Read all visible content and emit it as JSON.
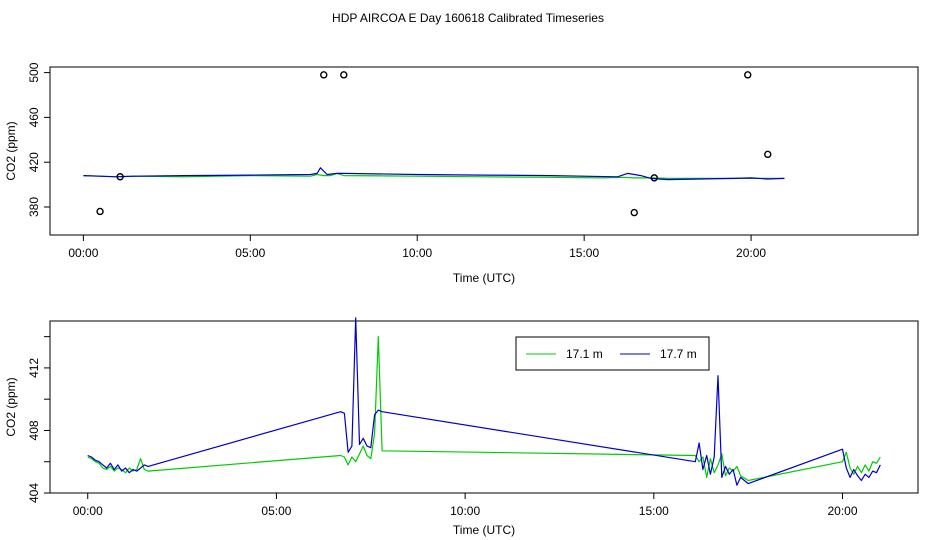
{
  "page_title": "HDP AIRCOA E  Day 160618  Calibrated Timeseries",
  "colors": {
    "series_green": "#00cc00",
    "series_blue": "#0000cc",
    "outlier_marker": "#000000"
  },
  "chart_data": [
    {
      "type": "line",
      "xlabel": "Time (UTC)",
      "ylabel": "CO2 (ppm)",
      "xlim": [
        -1,
        25
      ],
      "ylim": [
        355,
        505
      ],
      "x_ticks": [
        0,
        5,
        10,
        15,
        20
      ],
      "x_tick_labels": [
        "00:00",
        "05:00",
        "10:00",
        "15:00",
        "20:00"
      ],
      "y_ticks": [
        380,
        420,
        460,
        500
      ],
      "y_tick_labels": [
        "380",
        "420",
        "460",
        "500"
      ],
      "grid": false,
      "series": [
        {
          "color": "#00cc00",
          "x": [
            0,
            0.5,
            1.0,
            1.5,
            3.0,
            5.0,
            6.8,
            7.0,
            7.2,
            7.4,
            7.6,
            7.8,
            10.0,
            12.0,
            14.0,
            15.5,
            16.2,
            16.5,
            17.0,
            17.5,
            18.5,
            19.5,
            20.0,
            20.5,
            21.0
          ],
          "values": [
            408,
            407.5,
            407,
            407.5,
            407,
            408,
            407.5,
            409,
            408,
            408,
            410,
            408,
            407.5,
            407,
            406.5,
            406,
            406.5,
            406,
            406,
            405.5,
            405.5,
            405.5,
            405.5,
            405.5,
            405.5
          ]
        },
        {
          "color": "#0000cc",
          "x": [
            0,
            0.5,
            1.0,
            1.5,
            3.0,
            5.0,
            6.8,
            7.0,
            7.1,
            7.3,
            7.6,
            7.8,
            10.0,
            12.0,
            14.0,
            16.0,
            16.3,
            16.7,
            17.0,
            17.5,
            18.5,
            19.5,
            20.0,
            20.5,
            21.0
          ],
          "values": [
            408,
            407.5,
            407,
            407.5,
            408,
            408.5,
            409,
            410,
            415,
            409,
            410,
            410,
            409,
            408.5,
            408,
            407,
            410,
            408,
            405.5,
            404.5,
            405,
            405.5,
            406,
            405,
            405.5
          ]
        }
      ],
      "outliers": {
        "x": [
          0.5,
          1.1,
          7.2,
          7.8,
          16.5,
          17.1,
          19.9,
          20.5
        ],
        "values": [
          376,
          407,
          498,
          498,
          375,
          406,
          498,
          427
        ]
      }
    },
    {
      "type": "line",
      "xlabel": "Time (UTC)",
      "ylabel": "CO2 (ppm)",
      "xlim": [
        -1,
        22
      ],
      "ylim": [
        404,
        415
      ],
      "x_ticks": [
        0,
        5,
        10,
        15,
        20
      ],
      "x_tick_labels": [
        "00:00",
        "05:00",
        "10:00",
        "15:00",
        "20:00"
      ],
      "y_ticks": [
        404,
        406,
        408,
        410,
        412,
        414
      ],
      "y_tick_labels": [
        "404",
        "",
        "408",
        "",
        "412",
        ""
      ],
      "grid": false,
      "legend": {
        "placement": "top-center-right",
        "entries": [
          "17.1 m",
          "17.7 m"
        ]
      },
      "series": [
        {
          "name": "17.1 m",
          "color": "#00cc00",
          "x": [
            0,
            0.1,
            0.2,
            0.3,
            0.4,
            0.5,
            0.6,
            0.7,
            0.8,
            0.9,
            1.0,
            1.1,
            1.2,
            1.3,
            1.4,
            1.5,
            1.6,
            6.7,
            6.8,
            6.9,
            7.0,
            7.1,
            7.2,
            7.3,
            7.4,
            7.5,
            7.6,
            7.7,
            7.8,
            16.1,
            16.2,
            16.3,
            16.4,
            16.5,
            16.6,
            16.7,
            16.8,
            16.9,
            17.0,
            17.1,
            17.2,
            17.3,
            17.5,
            20.0,
            20.1,
            20.2,
            20.3,
            20.4,
            20.5,
            20.6,
            20.7,
            20.8,
            20.9,
            21.0
          ],
          "values": [
            406.3,
            406.2,
            406.0,
            405.9,
            405.6,
            405.5,
            405.7,
            405.4,
            405.6,
            405.5,
            405.3,
            405.6,
            405.4,
            405.5,
            406.2,
            405.5,
            405.4,
            406.4,
            406.3,
            405.8,
            406.3,
            406.0,
            406.5,
            407.0,
            406.4,
            406.2,
            407.8,
            414.0,
            406.7,
            406.4,
            406.0,
            406.3,
            405.0,
            406.2,
            405.3,
            405.8,
            406.5,
            405.1,
            405.6,
            405.4,
            405.7,
            405.1,
            404.8,
            406.0,
            406.6,
            405.6,
            405.2,
            405.7,
            405.3,
            405.8,
            405.4,
            406.0,
            405.9,
            406.3
          ]
        },
        {
          "name": "17.7 m",
          "color": "#0000cc",
          "x": [
            0,
            0.1,
            0.2,
            0.3,
            0.4,
            0.5,
            0.6,
            0.7,
            0.8,
            0.9,
            1.0,
            1.1,
            1.2,
            1.3,
            1.4,
            1.5,
            1.6,
            6.7,
            6.8,
            6.9,
            7.0,
            7.1,
            7.2,
            7.3,
            7.4,
            7.5,
            7.6,
            7.7,
            7.8,
            16.1,
            16.2,
            16.3,
            16.4,
            16.5,
            16.6,
            16.7,
            16.8,
            16.9,
            17.0,
            17.1,
            17.2,
            17.3,
            17.5,
            20.0,
            20.1,
            20.2,
            20.3,
            20.4,
            20.5,
            20.6,
            20.7,
            20.8,
            20.9,
            21.0
          ],
          "values": [
            406.4,
            406.3,
            406.1,
            406.0,
            405.8,
            405.6,
            405.9,
            405.5,
            405.8,
            405.4,
            405.6,
            405.3,
            405.5,
            405.4,
            405.6,
            405.8,
            405.7,
            409.2,
            409.1,
            406.6,
            407.0,
            415.2,
            407.1,
            407.5,
            407.0,
            406.9,
            409.0,
            409.3,
            409.2,
            406.0,
            407.2,
            405.5,
            406.4,
            405.2,
            406.3,
            411.5,
            405.0,
            405.7,
            405.2,
            405.5,
            404.5,
            405.0,
            404.6,
            406.8,
            405.6,
            405.0,
            405.5,
            405.1,
            404.8,
            405.2,
            405.0,
            405.4,
            405.3,
            405.8
          ]
        }
      ]
    }
  ]
}
